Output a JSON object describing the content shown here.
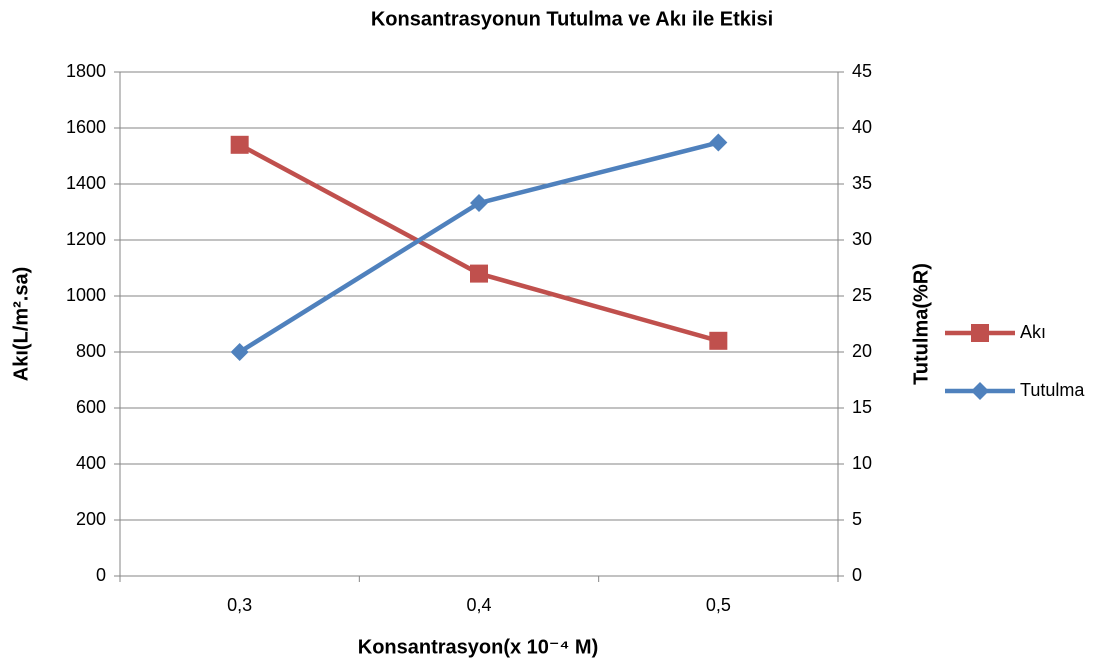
{
  "chart_data": {
    "type": "line",
    "title": "Konsantrasyonun Tutulma ve Akı ile Etkisi",
    "x_label": "Konsantrasyon(x 10⁻⁴ M)",
    "y_label": "Akı(L/m².sa)",
    "y2_label": "Tutulma(%R)",
    "categories": [
      "0,3",
      "0,4",
      "0,5"
    ],
    "series": [
      {
        "name": "Akı",
        "color": "#c0504d",
        "marker": "square",
        "values": [
          1540,
          1080,
          840
        ]
      },
      {
        "name": "Tutulma",
        "color": "#4f81bd",
        "marker": "diamond",
        "axis": "y2",
        "values": [
          20,
          33.3,
          38.7
        ]
      }
    ],
    "ylim": [
      0,
      1800
    ],
    "yticks": [
      0,
      200,
      400,
      600,
      800,
      1000,
      1200,
      1400,
      1600,
      1800
    ],
    "y2lim": [
      0,
      45
    ],
    "y2ticks": [
      0,
      5,
      10,
      15,
      20,
      25,
      30,
      35,
      40,
      45
    ],
    "grid": true,
    "legend": "right"
  }
}
